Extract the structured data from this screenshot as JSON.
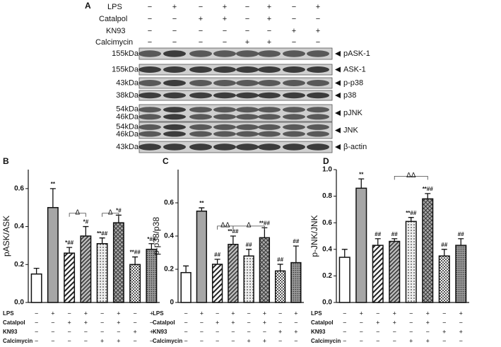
{
  "panel_labels": [
    "A",
    "B",
    "C",
    "D"
  ],
  "treatments": [
    {
      "name": "LPS",
      "signs": [
        "−",
        "+",
        "−",
        "+",
        "−",
        "+",
        "−",
        "+"
      ]
    },
    {
      "name": "Catalpol",
      "signs": [
        "−",
        "−",
        "+",
        "+",
        "−",
        "+",
        "−",
        "−"
      ]
    },
    {
      "name": "KN93",
      "signs": [
        "−",
        "−",
        "−",
        "−",
        "−",
        "−",
        "+",
        "+"
      ]
    },
    {
      "name": "Calcimycin",
      "signs": [
        "−",
        "−",
        "−",
        "−",
        "+",
        "+",
        "−",
        "−"
      ]
    }
  ],
  "blot": {
    "rows": [
      {
        "sizes": [
          "155kDa"
        ],
        "protein": "pASK-1"
      },
      {
        "sizes": [
          "155kDa"
        ],
        "protein": "ASK-1"
      },
      {
        "sizes": [
          "43kDa"
        ],
        "protein": "p-p38"
      },
      {
        "sizes": [
          "38kDa"
        ],
        "protein": "p38"
      },
      {
        "sizes": [
          "54kDa",
          "46kDa"
        ],
        "protein": "pJNK"
      },
      {
        "sizes": [
          "54kDa",
          "46kDa"
        ],
        "protein": "JNK"
      },
      {
        "sizes": [
          "43kDa"
        ],
        "protein": "β-actin"
      }
    ]
  },
  "chart_data": [
    {
      "type": "bar",
      "y_label": "pASK/ASK",
      "values": [
        0.15,
        0.5,
        0.26,
        0.35,
        0.31,
        0.42,
        0.2,
        0.28
      ],
      "errors": [
        0.03,
        0.1,
        0.03,
        0.05,
        0.03,
        0.04,
        0.04,
        0.03
      ],
      "annotations": [
        null,
        "**",
        "*##",
        "*#",
        "**##",
        "*#",
        "**##",
        "*##"
      ],
      "bracket_labels": [
        "Δ",
        "Δ"
      ],
      "ylim": [
        0,
        0.7
      ],
      "yticks": [
        {
          "value": 0,
          "label": "0.0"
        },
        0.2,
        0.4,
        0.6
      ]
    },
    {
      "type": "bar",
      "y_label": "p-p38/p38",
      "values": [
        0.18,
        0.55,
        0.23,
        0.35,
        0.28,
        0.39,
        0.19,
        0.24
      ],
      "errors": [
        0.04,
        0.02,
        0.03,
        0.05,
        0.04,
        0.06,
        0.04,
        0.1
      ],
      "annotations": [
        null,
        "**",
        "##",
        "**##",
        "##",
        "**##",
        "##",
        "##"
      ],
      "bracket_labels": [
        "ΔΔ",
        "Δ"
      ],
      "ylim": [
        0,
        0.8
      ],
      "yticks": [
        0,
        0.2,
        0.4,
        0.6
      ]
    },
    {
      "type": "bar",
      "y_label": "p-JNK/JNK",
      "values": [
        0.34,
        0.86,
        0.43,
        0.46,
        0.61,
        0.78,
        0.35,
        0.43
      ],
      "errors": [
        0.06,
        0.07,
        0.05,
        0.02,
        0.03,
        0.04,
        0.05,
        0.05
      ],
      "annotations": [
        null,
        "**",
        "##",
        "##",
        "**##",
        "**##",
        "##",
        "##"
      ],
      "bracket_labels": [
        "ΔΔ"
      ],
      "ylim": [
        0,
        1.0
      ],
      "yticks": [
        {
          "value": 0,
          "label": "0.0"
        },
        0.2,
        0.4,
        0.6,
        0.8,
        {
          "value": 1.0,
          "label": "1.0"
        }
      ]
    }
  ]
}
